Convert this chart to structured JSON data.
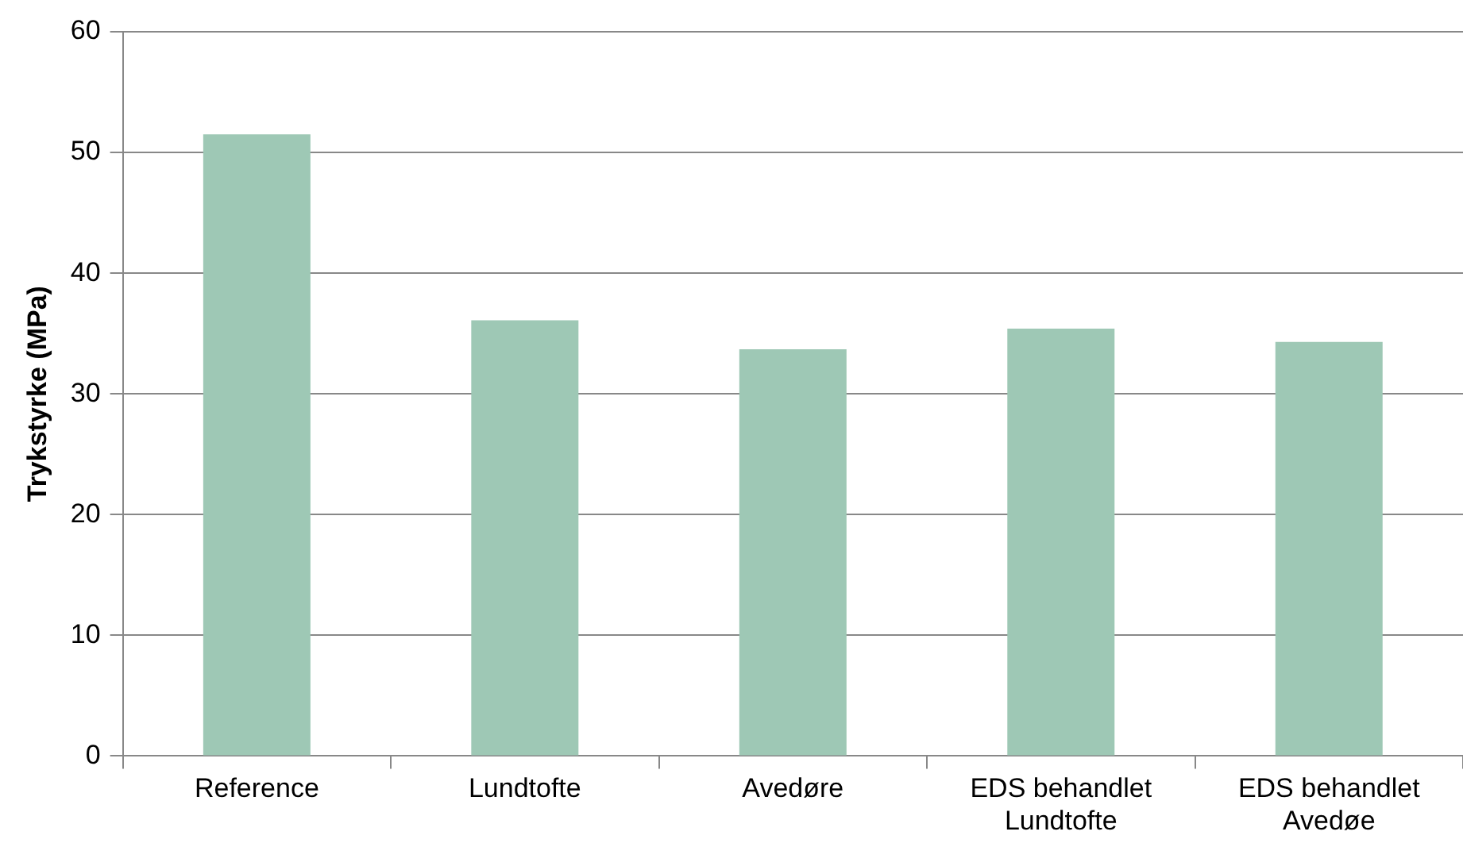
{
  "chart_data": {
    "type": "bar",
    "ylabel": "Trykstyrke (MPa)",
    "categories": [
      "Reference",
      "Lundtofte",
      "Avedøre",
      "EDS behandlet\nLundtofte",
      "EDS behandlet\nAvedøe"
    ],
    "values": [
      51.5,
      36.1,
      33.7,
      35.4,
      34.3
    ],
    "color": "#9ec8b5",
    "ylim": [
      0,
      60
    ],
    "yticks": [
      0,
      10,
      20,
      30,
      40,
      50,
      60
    ],
    "grid": "y",
    "legend": false
  }
}
